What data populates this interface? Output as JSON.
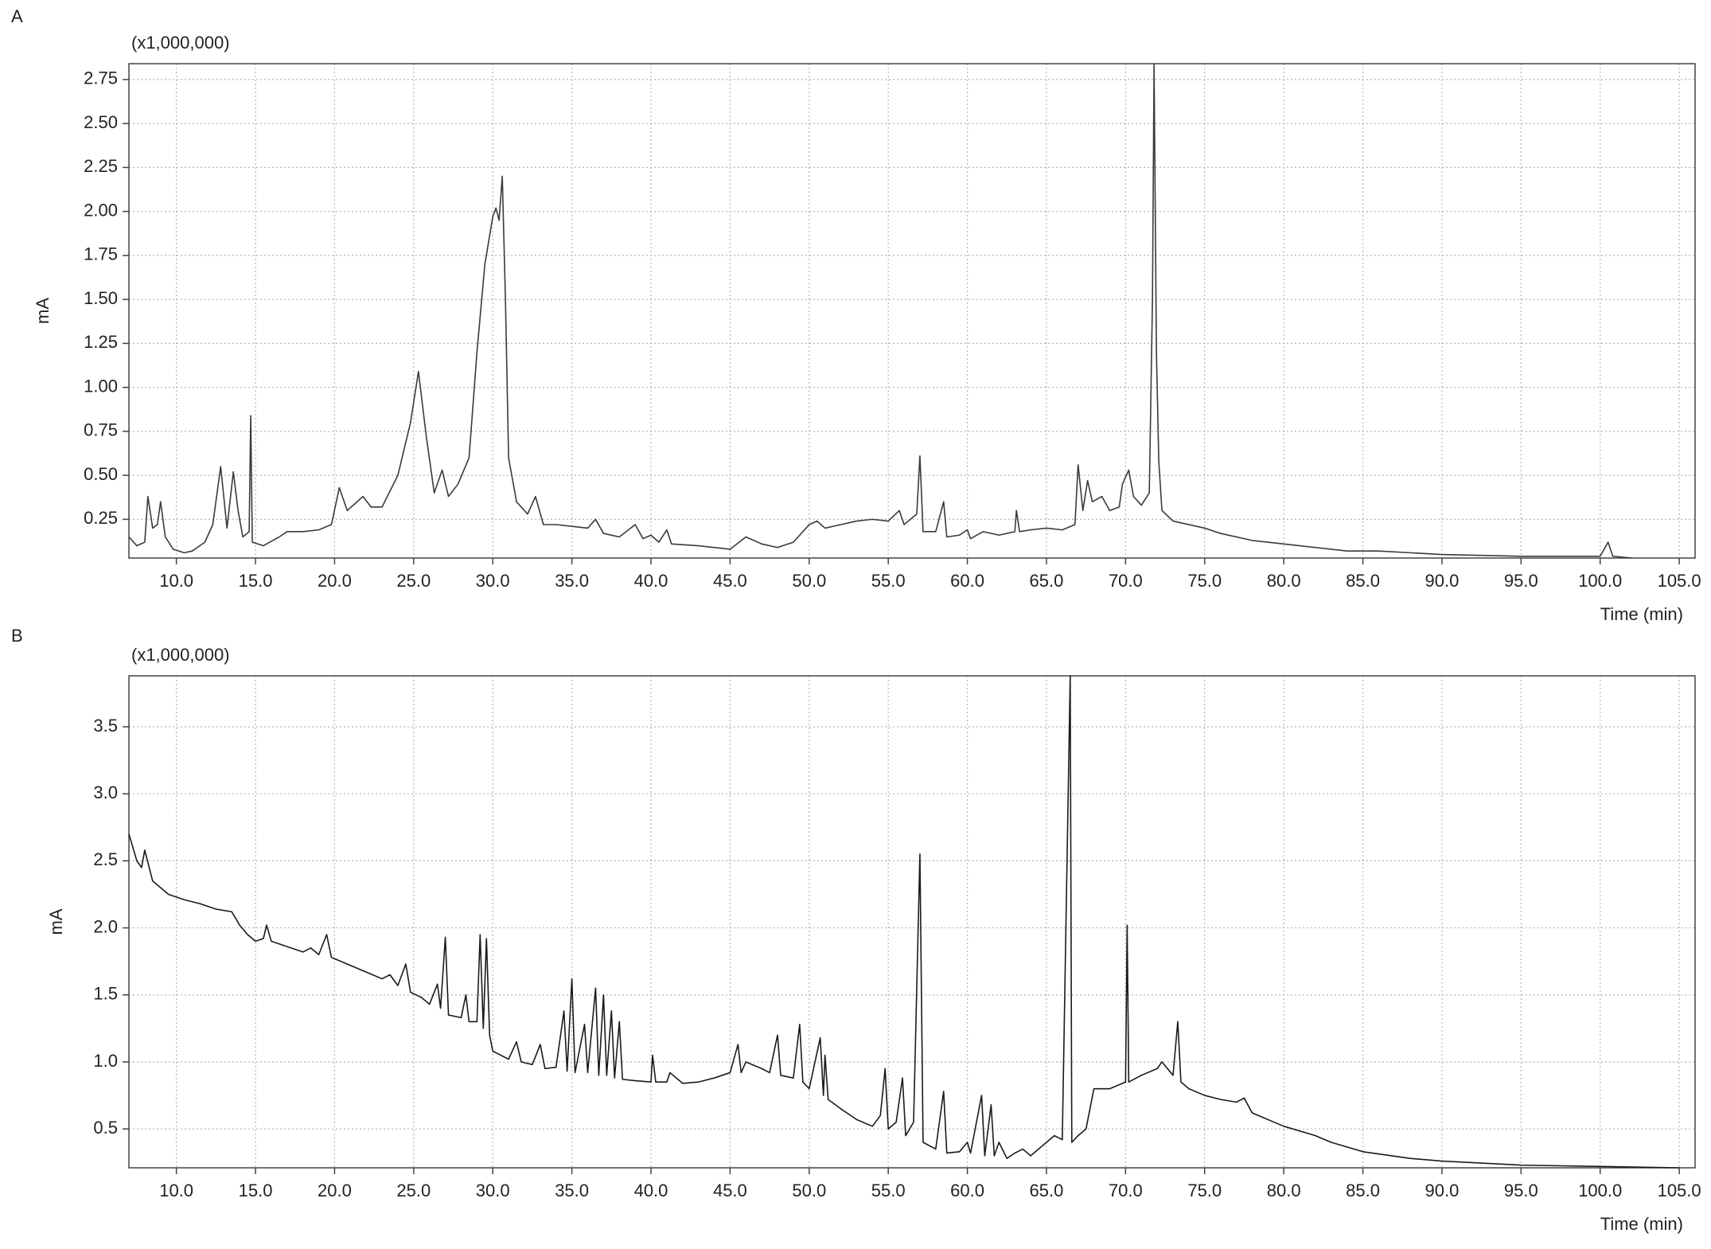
{
  "chart_data": [
    {
      "type": "line",
      "panel_label": "A",
      "multiplier_label": "(x1,000,000)",
      "y_label": "mA",
      "x_label": "Time (min)",
      "grid": true,
      "xlim": [
        7,
        106
      ],
      "ylim": [
        0.03,
        2.84
      ],
      "xticks": [
        {
          "value": 10,
          "label": "10.0"
        },
        {
          "value": 15,
          "label": "15.0"
        },
        {
          "value": 20,
          "label": "20.0"
        },
        {
          "value": 25,
          "label": "25.0"
        },
        {
          "value": 30,
          "label": "30.0"
        },
        {
          "value": 35,
          "label": "35.0"
        },
        {
          "value": 40,
          "label": "40.0"
        },
        {
          "value": 45,
          "label": "45.0"
        },
        {
          "value": 50,
          "label": "50.0"
        },
        {
          "value": 55,
          "label": "55.0"
        },
        {
          "value": 60,
          "label": "60.0"
        },
        {
          "value": 65,
          "label": "65.0"
        },
        {
          "value": 70,
          "label": "70.0"
        },
        {
          "value": 75,
          "label": "75.0"
        },
        {
          "value": 80,
          "label": "80.0"
        },
        {
          "value": 85,
          "label": "85.0"
        },
        {
          "value": 90,
          "label": "90.0"
        },
        {
          "value": 95,
          "label": "95.0"
        },
        {
          "value": 100,
          "label": "100.0"
        },
        {
          "value": 105,
          "label": "105.0"
        }
      ],
      "yticks": [
        0.25,
        {
          "value": 0.5,
          "label": "0.50"
        },
        0.75,
        {
          "value": 1,
          "label": "1.00"
        },
        1.25,
        {
          "value": 1.5,
          "label": "1.50"
        },
        1.75,
        {
          "value": 2,
          "label": "2.00"
        },
        2.25,
        {
          "value": 2.5,
          "label": "2.50"
        },
        2.75
      ],
      "x": [
        7.0,
        7.5,
        8.0,
        8.2,
        8.5,
        8.8,
        9.0,
        9.3,
        9.8,
        10.5,
        11.0,
        11.8,
        12.3,
        12.8,
        13.2,
        13.6,
        13.9,
        14.2,
        14.6,
        14.7,
        14.8,
        15.5,
        16.5,
        17.0,
        18.0,
        19.0,
        19.8,
        20.3,
        20.8,
        21.3,
        21.8,
        22.3,
        23.0,
        24.0,
        24.8,
        25.3,
        25.8,
        26.3,
        26.8,
        27.2,
        27.8,
        28.5,
        29.0,
        29.5,
        30.0,
        30.2,
        30.4,
        30.6,
        30.8,
        31.0,
        31.5,
        32.2,
        32.7,
        33.2,
        34.0,
        35.0,
        36.0,
        36.5,
        37.0,
        38.0,
        39.0,
        39.5,
        40.0,
        40.5,
        41.0,
        41.3,
        43.0,
        45.0,
        46.0,
        47.0,
        48.0,
        49.0,
        50.0,
        50.5,
        51.0,
        52.0,
        53.0,
        54.0,
        55.0,
        55.7,
        56.0,
        56.8,
        57.0,
        57.2,
        58.0,
        58.5,
        58.7,
        59.5,
        60.0,
        60.2,
        61.0,
        62.0,
        63.0,
        63.1,
        63.3,
        64.0,
        65.0,
        66.0,
        66.8,
        67.0,
        67.3,
        67.6,
        67.9,
        68.5,
        69.0,
        69.6,
        69.8,
        70.2,
        70.5,
        71.0,
        71.5,
        71.7,
        71.8,
        71.95,
        72.1,
        72.3,
        73.0,
        75.0,
        76.0,
        78.0,
        80.0,
        82.0,
        84.0,
        86.0,
        88.0,
        90.0,
        95.0,
        100.0,
        100.5,
        100.8,
        102.0
      ],
      "series": [
        {
          "color": "#3a3a3a",
          "values": [
            0.15,
            0.1,
            0.12,
            0.38,
            0.2,
            0.22,
            0.35,
            0.15,
            0.08,
            0.06,
            0.07,
            0.12,
            0.22,
            0.55,
            0.2,
            0.52,
            0.3,
            0.15,
            0.18,
            0.84,
            0.12,
            0.1,
            0.15,
            0.18,
            0.18,
            0.19,
            0.22,
            0.43,
            0.3,
            0.34,
            0.38,
            0.32,
            0.32,
            0.5,
            0.8,
            1.09,
            0.72,
            0.4,
            0.53,
            0.38,
            0.45,
            0.6,
            1.2,
            1.7,
            1.97,
            2.02,
            1.95,
            2.2,
            1.5,
            0.6,
            0.35,
            0.28,
            0.38,
            0.22,
            0.22,
            0.21,
            0.2,
            0.25,
            0.17,
            0.15,
            0.22,
            0.14,
            0.16,
            0.12,
            0.19,
            0.11,
            0.1,
            0.08,
            0.15,
            0.11,
            0.09,
            0.12,
            0.22,
            0.24,
            0.2,
            0.22,
            0.24,
            0.25,
            0.24,
            0.3,
            0.22,
            0.28,
            0.61,
            0.18,
            0.18,
            0.35,
            0.15,
            0.16,
            0.19,
            0.14,
            0.18,
            0.16,
            0.18,
            0.3,
            0.18,
            0.19,
            0.2,
            0.19,
            0.22,
            0.56,
            0.3,
            0.47,
            0.35,
            0.38,
            0.3,
            0.32,
            0.45,
            0.53,
            0.38,
            0.33,
            0.4,
            1.5,
            2.84,
            1.2,
            0.58,
            0.3,
            0.24,
            0.2,
            0.17,
            0.13,
            0.11,
            0.09,
            0.07,
            0.07,
            0.06,
            0.05,
            0.04,
            0.04,
            0.12,
            0.04,
            0.03
          ]
        }
      ]
    },
    {
      "type": "line",
      "panel_label": "B",
      "multiplier_label": "(x1,000,000)",
      "y_label": "mA",
      "x_label": "Time (min)",
      "grid": true,
      "xlim": [
        7,
        106
      ],
      "ylim": [
        0.21,
        3.88
      ],
      "xticks": [
        {
          "value": 10,
          "label": "10.0"
        },
        {
          "value": 15,
          "label": "15.0"
        },
        {
          "value": 20,
          "label": "20.0"
        },
        {
          "value": 25,
          "label": "25.0"
        },
        {
          "value": 30,
          "label": "30.0"
        },
        {
          "value": 35,
          "label": "35.0"
        },
        {
          "value": 40,
          "label": "40.0"
        },
        {
          "value": 45,
          "label": "45.0"
        },
        {
          "value": 50,
          "label": "50.0"
        },
        {
          "value": 55,
          "label": "55.0"
        },
        {
          "value": 60,
          "label": "60.0"
        },
        {
          "value": 65,
          "label": "65.0"
        },
        {
          "value": 70,
          "label": "70.0"
        },
        {
          "value": 75,
          "label": "75.0"
        },
        {
          "value": 80,
          "label": "80.0"
        },
        {
          "value": 85,
          "label": "85.0"
        },
        {
          "value": 90,
          "label": "90.0"
        },
        {
          "value": 95,
          "label": "95.0"
        },
        {
          "value": 100,
          "label": "100.0"
        },
        {
          "value": 105,
          "label": "105.0"
        }
      ],
      "yticks": [
        0.5,
        {
          "value": 1,
          "label": "1.0"
        },
        1.5,
        {
          "value": 2,
          "label": "2.0"
        },
        2.5,
        {
          "value": 3,
          "label": "3.0"
        },
        3.5
      ],
      "x": [
        7.0,
        7.5,
        7.8,
        8.0,
        8.5,
        9.5,
        10.5,
        11.5,
        12.5,
        13.5,
        14.0,
        14.5,
        15.0,
        15.5,
        15.7,
        16.0,
        17.0,
        18.0,
        18.5,
        19.0,
        19.5,
        19.8,
        21.0,
        22.0,
        23.0,
        23.5,
        24.0,
        24.5,
        24.8,
        25.5,
        26.0,
        26.5,
        26.7,
        27.0,
        27.2,
        28.0,
        28.3,
        28.5,
        29.0,
        29.2,
        29.4,
        29.6,
        29.8,
        30.0,
        31.0,
        31.5,
        31.8,
        32.5,
        33.0,
        33.3,
        34.0,
        34.5,
        34.7,
        35.0,
        35.2,
        35.8,
        36.0,
        36.5,
        36.7,
        37.0,
        37.2,
        37.5,
        37.7,
        38.0,
        38.2,
        39.0,
        40.0,
        40.1,
        40.3,
        41.0,
        41.2,
        42.0,
        43.0,
        44.0,
        45.0,
        45.5,
        45.7,
        46.0,
        47.0,
        47.5,
        48.0,
        48.2,
        49.0,
        49.4,
        49.6,
        50.0,
        50.7,
        50.9,
        51.0,
        51.2,
        52.0,
        53.0,
        54.0,
        54.5,
        54.8,
        55.0,
        55.5,
        55.9,
        56.1,
        56.6,
        57.0,
        57.2,
        58.0,
        58.5,
        58.7,
        59.5,
        60.0,
        60.2,
        60.9,
        61.1,
        61.5,
        61.7,
        62.0,
        62.5,
        63.0,
        63.5,
        64.0,
        65.0,
        65.5,
        66.0,
        66.5,
        66.6,
        67.0,
        67.5,
        68.0,
        69.0,
        70.0,
        70.1,
        70.2,
        71.0,
        72.0,
        72.3,
        73.0,
        73.3,
        73.5,
        74.0,
        75.0,
        76.0,
        77.0,
        77.5,
        78.0,
        80.0,
        82.0,
        83.0,
        85.0,
        88.0,
        90.0,
        95.0,
        100.0,
        105.0
      ],
      "series": [
        {
          "color": "#1a1a1a",
          "values": [
            2.7,
            2.5,
            2.45,
            2.58,
            2.35,
            2.25,
            2.21,
            2.18,
            2.14,
            2.12,
            2.02,
            1.95,
            1.9,
            1.92,
            2.02,
            1.9,
            1.86,
            1.82,
            1.85,
            1.8,
            1.95,
            1.78,
            1.72,
            1.67,
            1.62,
            1.65,
            1.57,
            1.73,
            1.52,
            1.48,
            1.43,
            1.58,
            1.4,
            1.93,
            1.35,
            1.33,
            1.5,
            1.3,
            1.3,
            1.95,
            1.25,
            1.92,
            1.2,
            1.08,
            1.02,
            1.15,
            1.0,
            0.98,
            1.13,
            0.95,
            0.96,
            1.38,
            0.93,
            1.62,
            0.92,
            1.28,
            0.92,
            1.55,
            0.9,
            1.5,
            0.9,
            1.38,
            0.88,
            1.3,
            0.87,
            0.86,
            0.85,
            1.05,
            0.85,
            0.85,
            0.92,
            0.84,
            0.85,
            0.88,
            0.92,
            1.13,
            0.92,
            1.0,
            0.95,
            0.92,
            1.2,
            0.9,
            0.88,
            1.28,
            0.85,
            0.8,
            1.18,
            0.75,
            1.05,
            0.72,
            0.65,
            0.57,
            0.52,
            0.6,
            0.95,
            0.5,
            0.55,
            0.88,
            0.45,
            0.55,
            2.55,
            0.4,
            0.35,
            0.78,
            0.32,
            0.33,
            0.4,
            0.32,
            0.75,
            0.3,
            0.68,
            0.3,
            0.4,
            0.28,
            0.32,
            0.35,
            0.3,
            0.4,
            0.45,
            0.42,
            3.88,
            0.4,
            0.45,
            0.5,
            0.8,
            0.8,
            0.85,
            2.02,
            0.85,
            0.9,
            0.95,
            1.0,
            0.9,
            1.3,
            0.85,
            0.8,
            0.75,
            0.72,
            0.7,
            0.73,
            0.62,
            0.52,
            0.45,
            0.4,
            0.33,
            0.28,
            0.26,
            0.23,
            0.22,
            0.21
          ]
        }
      ]
    }
  ]
}
